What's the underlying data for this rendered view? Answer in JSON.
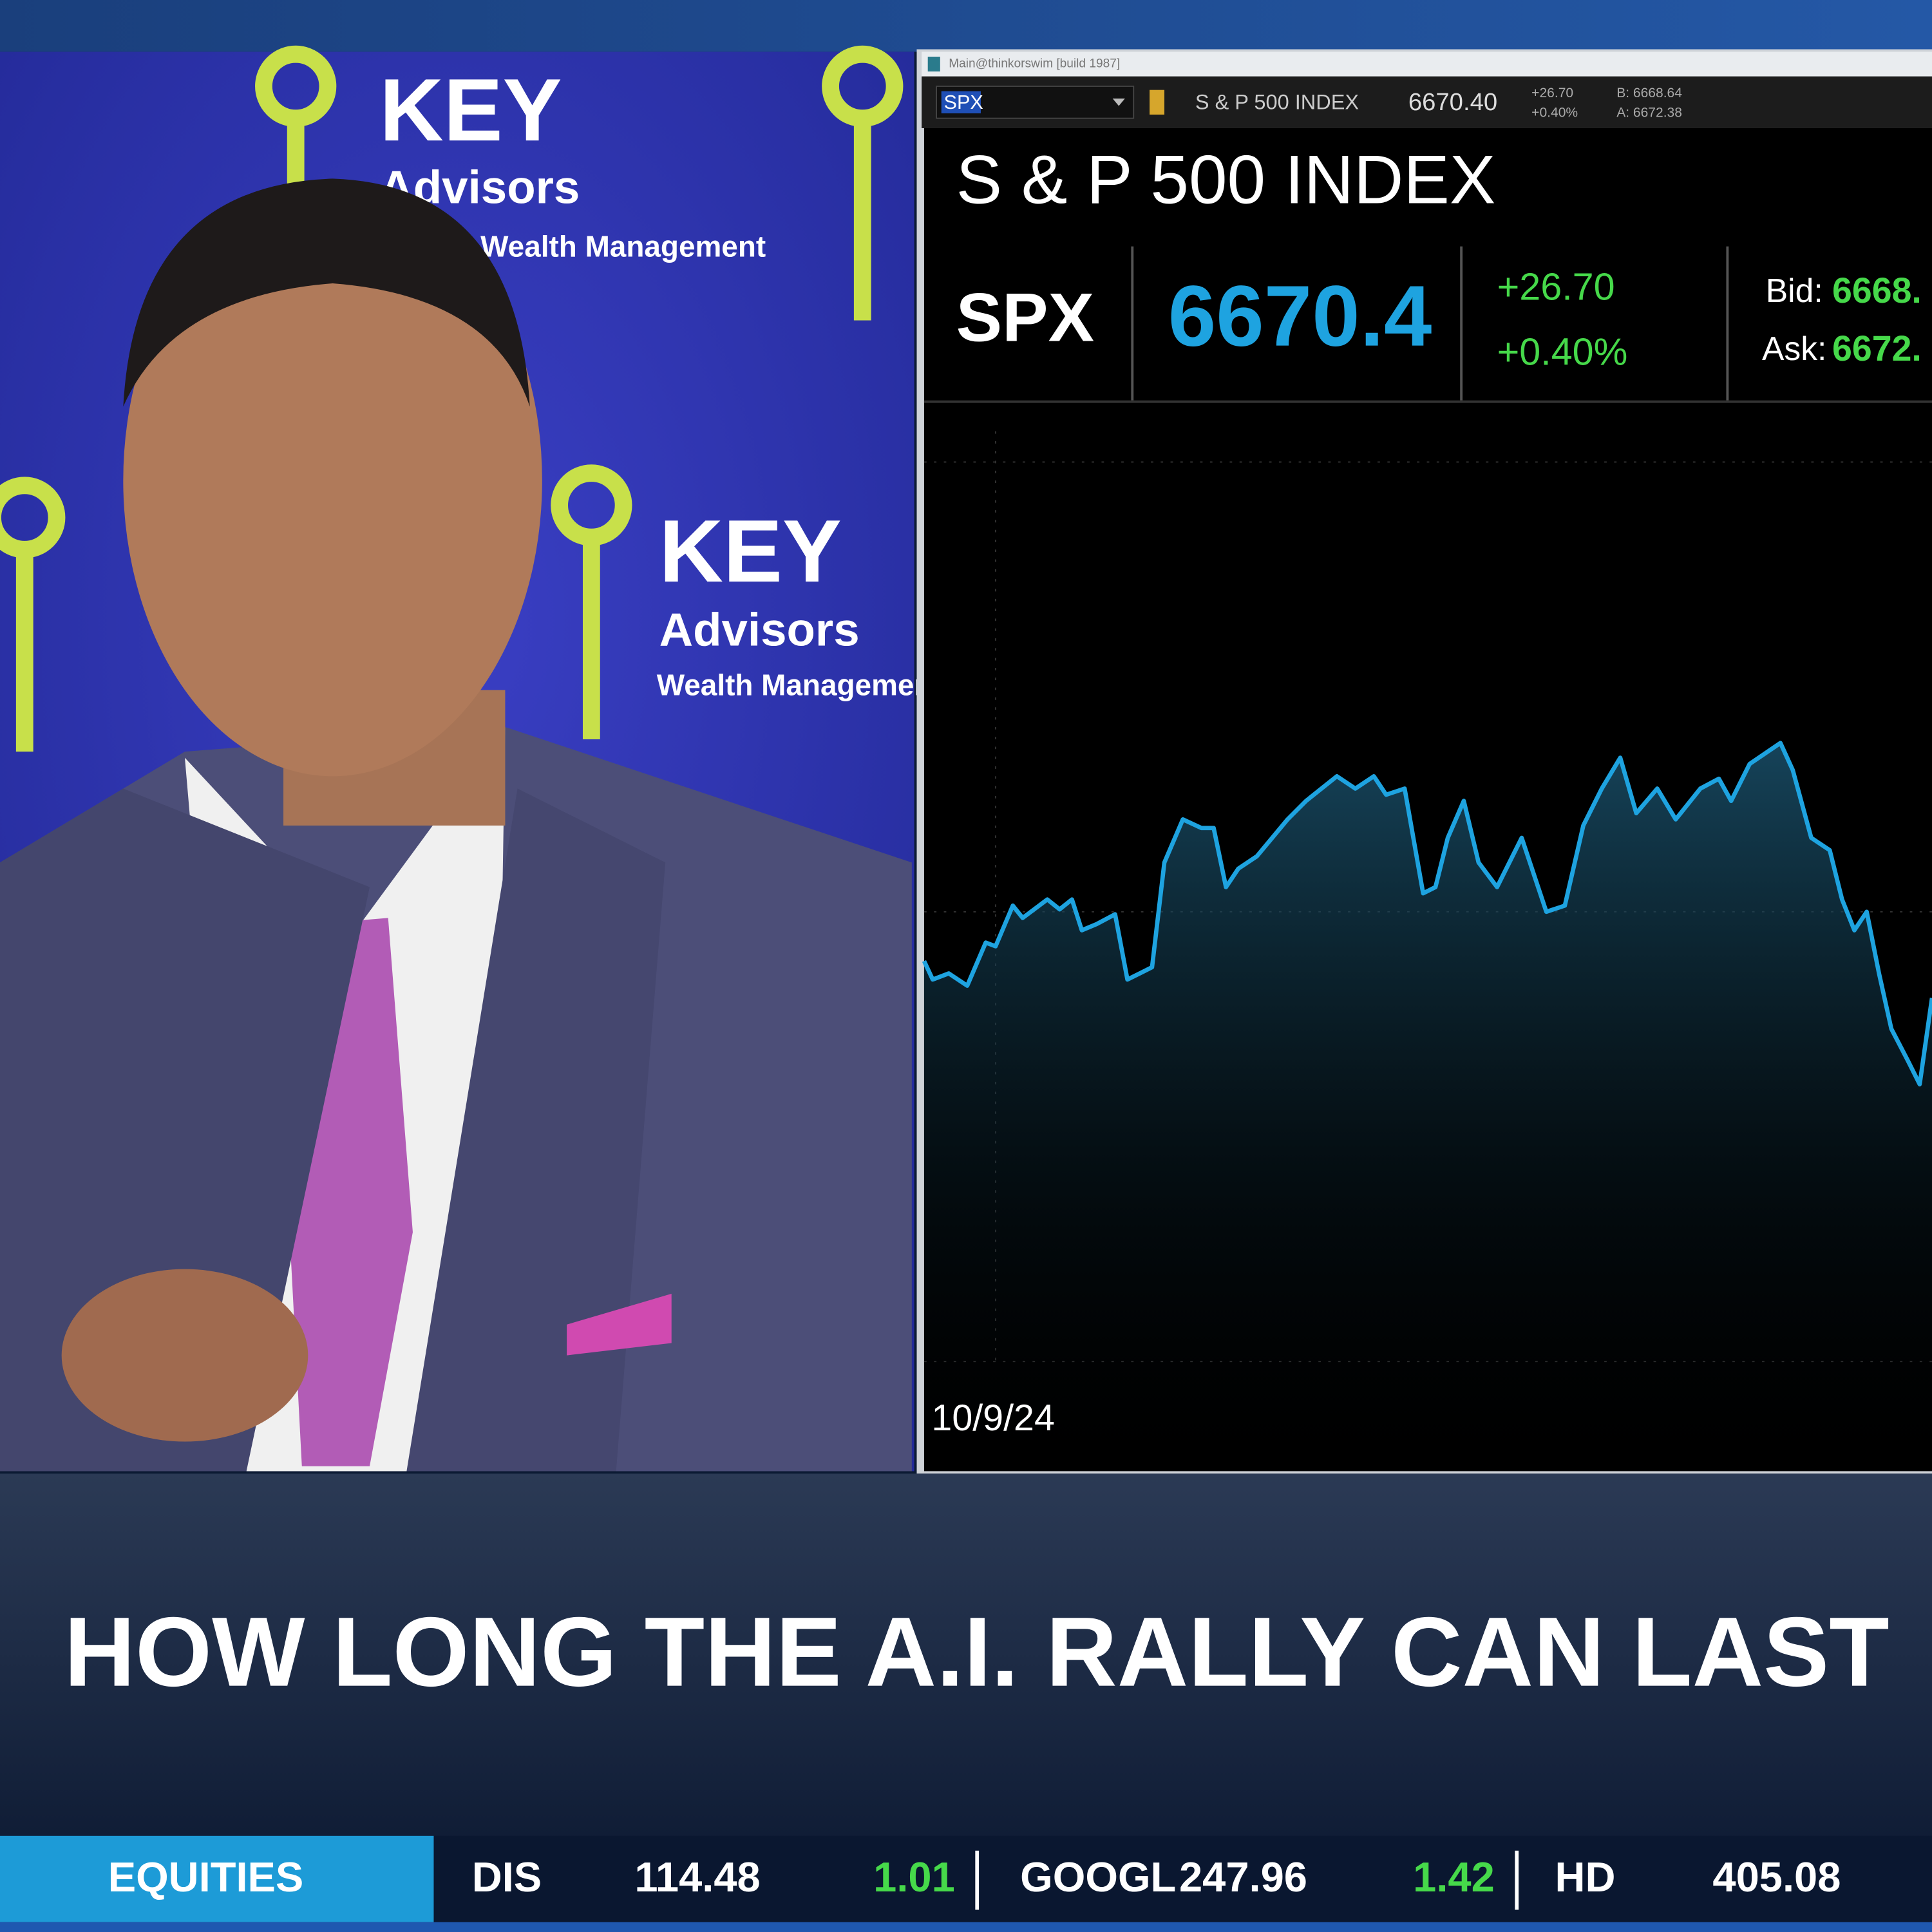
{
  "backdrop": {
    "brand": "KEY",
    "sub": "Advisors",
    "tagline": "Wealth Management"
  },
  "platform": {
    "window_title": "Main@thinkorswim [build 1987]",
    "symbol_box": "SPX",
    "name": "S & P 500 INDEX",
    "last": "6670.40",
    "change": "+26.70",
    "change_pct": "+0.40%",
    "bid": "B: 6668.64",
    "ask": "A: 6672.38"
  },
  "quote": {
    "title": "S & P 500 INDEX",
    "symbol": "SPX",
    "last": "6670.4",
    "change": "+26.70",
    "change_pct": "+0.40%",
    "bid_label": "Bid:",
    "bid": "6668.",
    "ask_label": "Ask:",
    "ask": "6672."
  },
  "chart": {
    "start_date": "10/9/24"
  },
  "headline": "HOW LONG THE A.I. RALLY CAN LAST",
  "ticker": {
    "section": "EQUITIES",
    "items": [
      {
        "symbol": "DIS",
        "price": "114.48",
        "change": "1.01"
      },
      {
        "symbol": "GOOGL",
        "price": "247.96",
        "change": "1.42"
      },
      {
        "symbol": "HD",
        "price": "405.08"
      }
    ]
  }
}
